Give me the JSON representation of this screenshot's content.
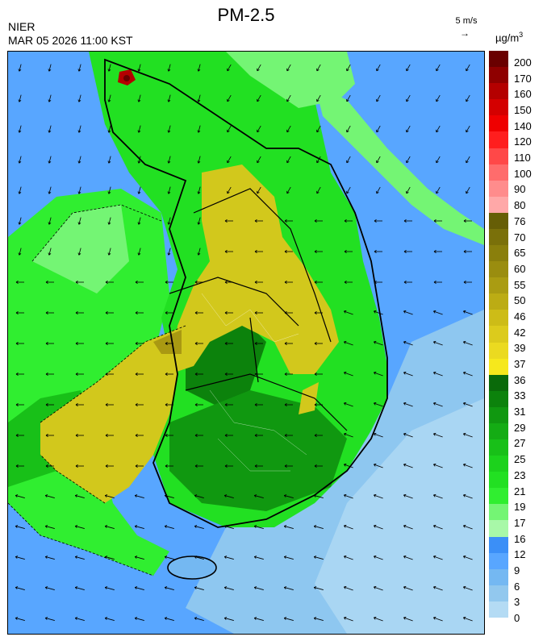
{
  "header": {
    "org": "NIER",
    "timestamp": "MAR 05 2026 11:00 KST",
    "title": "PM-2.5",
    "wind_scale": "5 m/s",
    "unit_prefix": "µg/m",
    "unit_power": "3"
  },
  "legend": {
    "labels": [
      "200",
      "170",
      "160",
      "150",
      "140",
      "120",
      "110",
      "100",
      "90",
      "80",
      "76",
      "70",
      "65",
      "60",
      "55",
      "50",
      "46",
      "42",
      "39",
      "37",
      "36",
      "33",
      "31",
      "29",
      "27",
      "25",
      "23",
      "21",
      "19",
      "17",
      "16",
      "12",
      "9",
      "6",
      "3",
      "0"
    ],
    "colors": [
      "#6a0000",
      "#8f0000",
      "#b40000",
      "#d40000",
      "#ef0000",
      "#ff1e1e",
      "#ff4848",
      "#ff6c6c",
      "#ff8c8c",
      "#ffa8a8",
      "#665e06",
      "#7a700a",
      "#8a7f0c",
      "#9a8d0f",
      "#aa9c12",
      "#bcac14",
      "#cdbc17",
      "#dccb1c",
      "#ebda20",
      "#f6e81c",
      "#0a6a0a",
      "#0c820c",
      "#109810",
      "#14ac14",
      "#18c018",
      "#1cd21c",
      "#22e022",
      "#30ee30",
      "#74f574",
      "#a8f8a8",
      "#3b8ff7",
      "#58a6ff",
      "#74b8f2",
      "#92c8ee",
      "#b4dbf4"
    ]
  },
  "map": {
    "stations_note": "",
    "fields": {
      "bg_color": "#58a6ff",
      "colors": {
        "sea_light": "#8ec7f0",
        "sea_lighter": "#a9d6f3",
        "sea_mid": "#58a6ff",
        "green_bright": "#22e022",
        "green_light": "#74f574",
        "green_mid": "#18c018",
        "green_dark": "#0c820c",
        "yellow": "#d2c81c",
        "yellow_dark": "#a99912",
        "red": "#d40000"
      }
    }
  }
}
